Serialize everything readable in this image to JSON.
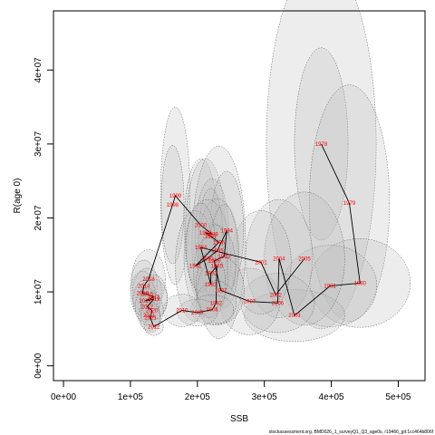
{
  "chart_data": {
    "type": "scatter",
    "title": "",
    "xlabel": "SSB",
    "ylabel": "R(age 0)",
    "xlim": [
      -15000,
      540000
    ],
    "ylim": [
      -2000000,
      48000000
    ],
    "x_ticks": [
      {
        "value": 0,
        "label": "0e+00"
      },
      {
        "value": 100000,
        "label": "1e+05"
      },
      {
        "value": 200000,
        "label": "2e+05"
      },
      {
        "value": 300000,
        "label": "3e+05"
      },
      {
        "value": 400000,
        "label": "4e+05"
      },
      {
        "value": 500000,
        "label": "5e+05"
      }
    ],
    "y_ticks": [
      {
        "value": 0,
        "label": "0e+00"
      },
      {
        "value": 10000000,
        "label": "1e+07"
      },
      {
        "value": 20000000,
        "label": "2e+07"
      },
      {
        "value": 30000000,
        "label": "3e+07"
      },
      {
        "value": 40000000,
        "label": "4e+07"
      }
    ],
    "colors": {
      "points": "#ff0000",
      "line": "#000000",
      "ellipse_fill": "#bdbdbd",
      "ellipse_stroke": "#555555"
    },
    "points": [
      {
        "year": "1978",
        "x": 385000,
        "y": 30000000
      },
      {
        "year": "1979",
        "x": 427000,
        "y": 22000000
      },
      {
        "year": "1980",
        "x": 443000,
        "y": 11200000
      },
      {
        "year": "1981",
        "x": 398000,
        "y": 10800000
      },
      {
        "year": "1982",
        "x": 228000,
        "y": 8500000
      },
      {
        "year": "1983",
        "x": 220000,
        "y": 11000000
      },
      {
        "year": "1984",
        "x": 205000,
        "y": 16000000
      },
      {
        "year": "1985",
        "x": 229000,
        "y": 13500000
      },
      {
        "year": "1986",
        "x": 232000,
        "y": 16700000
      },
      {
        "year": "1987",
        "x": 220000,
        "y": 17500000
      },
      {
        "year": "1988",
        "x": 212000,
        "y": 18000000
      },
      {
        "year": "1989",
        "x": 222000,
        "y": 17800000
      },
      {
        "year": "1990",
        "x": 215000,
        "y": 14500000
      },
      {
        "year": "1991",
        "x": 197000,
        "y": 13500000
      },
      {
        "year": "1992",
        "x": 220000,
        "y": 12500000
      },
      {
        "year": "1993",
        "x": 240000,
        "y": 14800000
      },
      {
        "year": "1994",
        "x": 244000,
        "y": 18300000
      },
      {
        "year": "1995",
        "x": 230000,
        "y": 15600000
      },
      {
        "year": "1996",
        "x": 225000,
        "y": 14200000
      },
      {
        "year": "1997",
        "x": 235000,
        "y": 10200000
      },
      {
        "year": "1998",
        "x": 163000,
        "y": 21800000
      },
      {
        "year": "1999",
        "x": 167000,
        "y": 23000000
      },
      {
        "year": "2000",
        "x": 205000,
        "y": 19000000
      },
      {
        "year": "2001",
        "x": 295000,
        "y": 14000000
      },
      {
        "year": "2002",
        "x": 317000,
        "y": 9600000
      },
      {
        "year": "2003",
        "x": 345000,
        "y": 6800000
      },
      {
        "year": "2004",
        "x": 322000,
        "y": 14500000
      },
      {
        "year": "2005",
        "x": 360000,
        "y": 14500000
      },
      {
        "year": "2006",
        "x": 320000,
        "y": 8500000
      },
      {
        "year": "2007",
        "x": 278000,
        "y": 8700000
      },
      {
        "year": "2008",
        "x": 222000,
        "y": 7600000
      },
      {
        "year": "2009",
        "x": 200000,
        "y": 7200000
      },
      {
        "year": "2010",
        "x": 177000,
        "y": 7500000
      },
      {
        "year": "2011",
        "x": 128000,
        "y": 6800000
      },
      {
        "year": "2012",
        "x": 135000,
        "y": 5300000
      },
      {
        "year": "2013",
        "x": 135000,
        "y": 9300000
      },
      {
        "year": "2014",
        "x": 120000,
        "y": 10800000
      },
      {
        "year": "2015",
        "x": 125000,
        "y": 9700000
      },
      {
        "year": "2016",
        "x": 118000,
        "y": 9800000
      },
      {
        "year": "2017",
        "x": 122000,
        "y": 8800000
      },
      {
        "year": "2018",
        "x": 127000,
        "y": 11700000
      },
      {
        "year": "2019",
        "x": 135000,
        "y": 9000000
      },
      {
        "year": "2020",
        "x": 132000,
        "y": 7500000
      },
      {
        "year": "2021",
        "x": 130000,
        "y": 6500000
      },
      {
        "year": "2022",
        "x": 125000,
        "y": 8000000
      }
    ],
    "path_order": [
      "1978",
      "1979",
      "1980",
      "1981",
      "2003",
      "2004",
      "2006",
      "2007",
      "1997",
      "1996",
      "1993",
      "1994",
      "1995",
      "1990",
      "1991",
      "1986",
      "1987",
      "1988",
      "1989",
      "2000",
      "1999",
      "1998",
      "2018",
      "2014",
      "2016",
      "2015",
      "2013",
      "2017",
      "2019",
      "2022",
      "2020",
      "2021",
      "2011",
      "2012",
      "2010",
      "2009",
      "2008",
      "1982",
      "1985",
      "1992",
      "1983",
      "1984",
      "2001",
      "2002",
      "2005"
    ],
    "ellipses": [
      {
        "cx": 385000,
        "cy": 30000000,
        "rx": 82000,
        "ry": 25000000
      },
      {
        "cx": 385000,
        "cy": 30000000,
        "rx": 40000,
        "ry": 13000000
      },
      {
        "cx": 427000,
        "cy": 22000000,
        "rx": 60000,
        "ry": 16000000
      },
      {
        "cx": 443000,
        "cy": 11200000,
        "rx": 75000,
        "ry": 6000000
      },
      {
        "cx": 398000,
        "cy": 10800000,
        "rx": 70000,
        "ry": 5500000
      },
      {
        "cx": 345000,
        "cy": 6800000,
        "rx": 75000,
        "ry": 3500000
      },
      {
        "cx": 322000,
        "cy": 14500000,
        "rx": 50000,
        "ry": 8000000
      },
      {
        "cx": 360000,
        "cy": 14500000,
        "rx": 60000,
        "ry": 9000000
      },
      {
        "cx": 320000,
        "cy": 8500000,
        "rx": 55000,
        "ry": 4000000
      },
      {
        "cx": 278000,
        "cy": 8700000,
        "rx": 45000,
        "ry": 4500000
      },
      {
        "cx": 295000,
        "cy": 14000000,
        "rx": 45000,
        "ry": 7000000
      },
      {
        "cx": 167000,
        "cy": 23000000,
        "rx": 22000,
        "ry": 12000000
      },
      {
        "cx": 163000,
        "cy": 21800000,
        "rx": 17000,
        "ry": 8000000
      },
      {
        "cx": 205000,
        "cy": 19000000,
        "rx": 25000,
        "ry": 9000000
      },
      {
        "cx": 212000,
        "cy": 18000000,
        "rx": 30000,
        "ry": 10000000
      },
      {
        "cx": 232000,
        "cy": 16700000,
        "rx": 40000,
        "ry": 13000000
      },
      {
        "cx": 222000,
        "cy": 17800000,
        "rx": 25000,
        "ry": 7500000
      },
      {
        "cx": 244000,
        "cy": 18300000,
        "rx": 25000,
        "ry": 8000000
      },
      {
        "cx": 220000,
        "cy": 17500000,
        "rx": 18000,
        "ry": 6500000
      },
      {
        "cx": 230000,
        "cy": 15600000,
        "rx": 30000,
        "ry": 7000000
      },
      {
        "cx": 215000,
        "cy": 14500000,
        "rx": 35000,
        "ry": 8000000
      },
      {
        "cx": 240000,
        "cy": 14800000,
        "rx": 22000,
        "ry": 7000000
      },
      {
        "cx": 229000,
        "cy": 13500000,
        "rx": 28000,
        "ry": 5500000
      },
      {
        "cx": 197000,
        "cy": 13500000,
        "rx": 30000,
        "ry": 7500000
      },
      {
        "cx": 225000,
        "cy": 14200000,
        "rx": 20000,
        "ry": 5000000
      },
      {
        "cx": 220000,
        "cy": 12500000,
        "rx": 26000,
        "ry": 5000000
      },
      {
        "cx": 205000,
        "cy": 16000000,
        "rx": 22000,
        "ry": 6000000
      },
      {
        "cx": 235000,
        "cy": 10200000,
        "rx": 35000,
        "ry": 4500000
      },
      {
        "cx": 220000,
        "cy": 11000000,
        "rx": 22000,
        "ry": 4500000
      },
      {
        "cx": 228000,
        "cy": 8500000,
        "rx": 30000,
        "ry": 3000000
      },
      {
        "cx": 222000,
        "cy": 7600000,
        "rx": 32000,
        "ry": 2000000
      },
      {
        "cx": 200000,
        "cy": 7200000,
        "rx": 30000,
        "ry": 1800000
      },
      {
        "cx": 177000,
        "cy": 7500000,
        "rx": 28000,
        "ry": 2200000
      },
      {
        "cx": 127000,
        "cy": 11700000,
        "rx": 25000,
        "ry": 4000000
      },
      {
        "cx": 120000,
        "cy": 10800000,
        "rx": 20000,
        "ry": 3500000
      },
      {
        "cx": 125000,
        "cy": 9700000,
        "rx": 22000,
        "ry": 3500000
      },
      {
        "cx": 118000,
        "cy": 9800000,
        "rx": 18000,
        "ry": 3000000
      },
      {
        "cx": 135000,
        "cy": 9300000,
        "rx": 20000,
        "ry": 3000000
      },
      {
        "cx": 122000,
        "cy": 8800000,
        "rx": 18000,
        "ry": 2800000
      },
      {
        "cx": 135000,
        "cy": 9000000,
        "rx": 20000,
        "ry": 2700000
      },
      {
        "cx": 125000,
        "cy": 8000000,
        "rx": 18000,
        "ry": 2500000
      },
      {
        "cx": 132000,
        "cy": 7500000,
        "rx": 17000,
        "ry": 2300000
      },
      {
        "cx": 130000,
        "cy": 6500000,
        "rx": 15000,
        "ry": 2000000
      },
      {
        "cx": 128000,
        "cy": 6800000,
        "rx": 16000,
        "ry": 2000000
      },
      {
        "cx": 135000,
        "cy": 5300000,
        "rx": 14000,
        "ry": 1200000
      }
    ]
  },
  "footer": {
    "text": "stockassessment.org, BMD026_1_surveyQ1_Q3_age0s, r19466_git:1cc464b806f"
  }
}
